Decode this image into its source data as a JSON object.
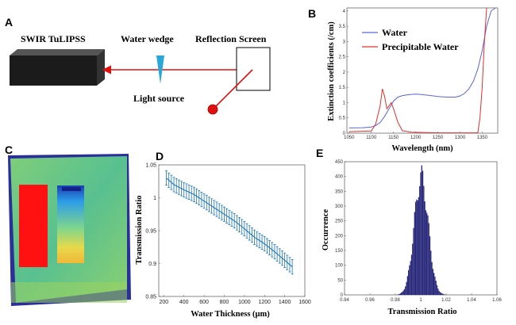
{
  "panels": {
    "A": {
      "letter": "A",
      "device_label": "SWIR TuLIPSS",
      "wedge_label": "Water wedge",
      "screen_label": "Reflection Screen",
      "source_label": "Light source"
    },
    "B": {
      "letter": "B"
    },
    "C": {
      "letter": "C"
    },
    "D": {
      "letter": "D"
    },
    "E": {
      "letter": "E"
    }
  },
  "colors": {
    "water": "#5a64dc",
    "precip": "#e03030",
    "errorbar": "#1f77b4",
    "hist": "#28287a",
    "laser": "#e01010"
  },
  "chart_data": [
    {
      "panel": "B",
      "type": "line",
      "xlabel": "Wavelength (nm)",
      "ylabel": "Extinction coefficients (/cm)",
      "xlim": [
        1045,
        1385
      ],
      "ylim": [
        0,
        4.1
      ],
      "xticks": [
        1050,
        1100,
        1150,
        1200,
        1250,
        1300,
        1350
      ],
      "yticks": [
        0,
        0.5,
        1,
        1.5,
        2,
        2.5,
        3,
        3.5,
        4
      ],
      "legend_position": "top-right",
      "series": [
        {
          "name": "Water",
          "x": [
            1050,
            1080,
            1100,
            1110,
            1120,
            1130,
            1140,
            1150,
            1160,
            1170,
            1180,
            1190,
            1200,
            1210,
            1230,
            1250,
            1270,
            1290,
            1300,
            1310,
            1320,
            1330,
            1340,
            1350,
            1360,
            1370,
            1380
          ],
          "y": [
            0.17,
            0.18,
            0.2,
            0.25,
            0.35,
            0.55,
            0.8,
            1.05,
            1.18,
            1.23,
            1.25,
            1.27,
            1.28,
            1.27,
            1.24,
            1.2,
            1.18,
            1.18,
            1.22,
            1.3,
            1.45,
            1.7,
            2.1,
            2.7,
            3.5,
            4.0,
            4.1
          ]
        },
        {
          "name": "Precipitable Water",
          "x": [
            1050,
            1100,
            1110,
            1120,
            1125,
            1130,
            1135,
            1140,
            1145,
            1150,
            1160,
            1170,
            1190,
            1250,
            1300,
            1340,
            1345,
            1350,
            1355,
            1360
          ],
          "y": [
            0.05,
            0.07,
            0.3,
            0.9,
            1.45,
            1.2,
            0.8,
            0.9,
            1.0,
            0.8,
            0.35,
            0.08,
            0.03,
            0.01,
            0.01,
            0.01,
            0.5,
            1.5,
            3.0,
            4.1
          ]
        }
      ]
    },
    {
      "panel": "D",
      "type": "line",
      "xlabel": "Water Thickness (μm)",
      "ylabel": "Transmission Ratio",
      "xlim": [
        150,
        1600
      ],
      "ylim": [
        0.85,
        1.05
      ],
      "xticks": [
        200,
        400,
        600,
        800,
        1000,
        1200,
        1400,
        1600
      ],
      "yticks": [
        0.85,
        0.9,
        0.95,
        1,
        1.05
      ],
      "series": [
        {
          "name": "",
          "x": [
            225,
            300,
            400,
            500,
            600,
            700,
            800,
            900,
            1000,
            1100,
            1200,
            1300,
            1400,
            1475
          ],
          "y": [
            1.03,
            1.02,
            1.012,
            1.005,
            0.995,
            0.985,
            0.975,
            0.965,
            0.953,
            0.94,
            0.93,
            0.918,
            0.905,
            0.895
          ],
          "err": 0.011
        }
      ]
    },
    {
      "panel": "E",
      "type": "bar",
      "xlabel": "Transmission Ratio",
      "ylabel": "Occurrence",
      "xlim": [
        0.94,
        1.06
      ],
      "ylim": [
        0,
        450
      ],
      "xticks": [
        0.94,
        0.96,
        0.98,
        1,
        1.02,
        1.04,
        1.06
      ],
      "yticks": [
        0,
        50,
        100,
        150,
        200,
        250,
        300,
        350,
        400,
        450
      ],
      "peak_x": 1.0,
      "peak_y": 440,
      "sigma": 0.0055
    }
  ]
}
